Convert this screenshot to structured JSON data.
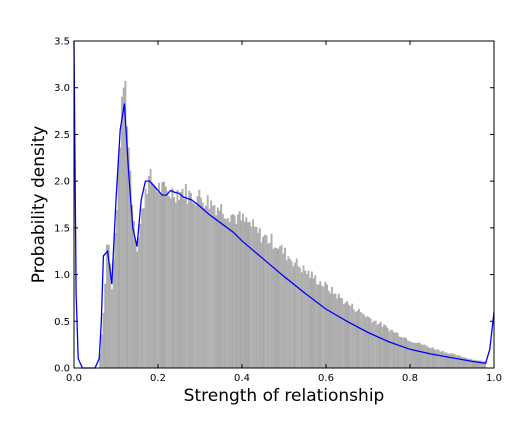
{
  "chart_data": {
    "type": "area",
    "title": "",
    "xlabel": "Strength of relationship",
    "ylabel": "Probability density",
    "xlim": [
      0.0,
      1.0
    ],
    "ylim": [
      0.0,
      3.5
    ],
    "xticks": [
      0.0,
      0.2,
      0.4,
      0.6,
      0.8,
      1.0
    ],
    "xtick_labels": [
      "0.0",
      "0.2",
      "0.4",
      "0.6",
      "0.8",
      "1.0"
    ],
    "yticks": [
      0.0,
      0.5,
      1.0,
      1.5,
      2.0,
      2.5,
      3.0,
      3.5
    ],
    "ytick_labels": [
      "0.0",
      "0.5",
      "1.0",
      "1.5",
      "2.0",
      "2.5",
      "3.0",
      "3.5"
    ],
    "grid": false,
    "legend": "none",
    "colors": {
      "histogram": "#a9a9a9",
      "density_curve": "#0000ff"
    },
    "series": [
      {
        "kind": "histogram",
        "x": [
          0.06,
          0.07,
          0.08,
          0.09,
          0.1,
          0.11,
          0.12,
          0.13,
          0.14,
          0.15,
          0.16,
          0.17,
          0.18,
          0.19,
          0.2,
          0.22,
          0.24,
          0.26,
          0.28,
          0.3,
          0.32,
          0.34,
          0.36,
          0.38,
          0.4,
          0.42,
          0.44,
          0.46,
          0.48,
          0.5,
          0.55,
          0.6,
          0.65,
          0.7,
          0.75,
          0.8,
          0.85,
          0.9,
          0.95,
          0.98
        ],
        "y": [
          0.05,
          0.6,
          1.5,
          0.85,
          1.6,
          2.5,
          3.2,
          2.4,
          1.7,
          1.3,
          1.6,
          1.95,
          2.05,
          2.0,
          1.95,
          1.9,
          1.9,
          1.92,
          1.85,
          1.85,
          1.8,
          1.75,
          1.7,
          1.65,
          1.6,
          1.55,
          1.45,
          1.4,
          1.35,
          1.25,
          1.05,
          0.88,
          0.7,
          0.55,
          0.42,
          0.3,
          0.22,
          0.15,
          0.09,
          0.07
        ]
      },
      {
        "kind": "line",
        "x": [
          0.0,
          0.005,
          0.01,
          0.02,
          0.03,
          0.04,
          0.05,
          0.06,
          0.065,
          0.07,
          0.08,
          0.09,
          0.1,
          0.11,
          0.12,
          0.13,
          0.14,
          0.15,
          0.16,
          0.17,
          0.18,
          0.19,
          0.2,
          0.21,
          0.22,
          0.23,
          0.24,
          0.25,
          0.26,
          0.28,
          0.3,
          0.32,
          0.35,
          0.38,
          0.4,
          0.45,
          0.5,
          0.55,
          0.6,
          0.65,
          0.7,
          0.75,
          0.8,
          0.85,
          0.9,
          0.95,
          0.98,
          0.99,
          1.0
        ],
        "y": [
          3.5,
          0.8,
          0.1,
          0.0,
          0.0,
          0.0,
          0.0,
          0.1,
          0.5,
          1.2,
          1.25,
          0.9,
          1.8,
          2.55,
          2.83,
          2.1,
          1.5,
          1.3,
          1.8,
          2.0,
          2.0,
          1.95,
          1.9,
          1.85,
          1.85,
          1.9,
          1.88,
          1.87,
          1.83,
          1.8,
          1.73,
          1.65,
          1.55,
          1.45,
          1.36,
          1.17,
          0.98,
          0.8,
          0.63,
          0.5,
          0.38,
          0.28,
          0.2,
          0.15,
          0.11,
          0.07,
          0.05,
          0.2,
          0.6
        ]
      }
    ]
  }
}
